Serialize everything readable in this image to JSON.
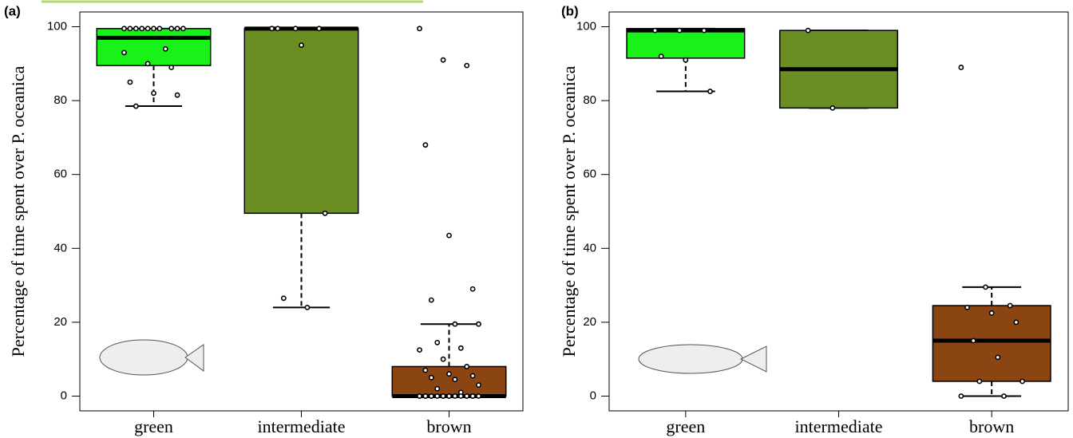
{
  "chart_data": [
    {
      "type": "boxplot",
      "panel_label": "(a)",
      "ylabel": "Percentage of time spent over P. oceanica",
      "categories": [
        "green",
        "intermediate",
        "brown"
      ],
      "colors": [
        "#19f219",
        "#6b8e23",
        "#8b4513"
      ],
      "ylim": [
        -4,
        104
      ],
      "yticks": [
        0,
        20,
        40,
        60,
        80,
        100
      ],
      "stats": [
        {
          "min": 78.5,
          "q1": 89.5,
          "median": 97,
          "q3": 99.5,
          "max": 99.5
        },
        {
          "min": 24,
          "q1": 49.5,
          "median": 99.5,
          "q3": 99.5,
          "max": 99.5
        },
        {
          "min": 0,
          "q1": 0,
          "median": 0,
          "q3": 8,
          "max": 19.5
        }
      ],
      "points": [
        [
          99.5,
          99.5,
          99.5,
          99.5,
          99.5,
          99.5,
          99.5,
          99.5,
          99.5,
          99.5,
          94,
          93,
          90,
          89,
          85,
          82,
          81.5,
          78.5
        ],
        [
          99.5,
          99.5,
          99.5,
          99.5,
          95,
          49.5,
          26.5,
          24
        ],
        [
          99.5,
          91,
          89.5,
          68,
          43.5,
          29,
          26,
          19.5,
          19.5,
          14.5,
          13,
          12.5,
          10,
          8,
          7,
          6,
          5.5,
          5,
          4.5,
          3,
          2,
          1,
          0,
          0,
          0,
          0,
          0,
          0,
          0,
          0,
          0,
          0,
          0,
          0,
          0,
          0,
          0,
          0,
          0,
          0
        ]
      ]
    },
    {
      "type": "boxplot",
      "panel_label": "(b)",
      "ylabel": "Percentage of time spent over P. oceanica",
      "categories": [
        "green",
        "intermediate",
        "brown"
      ],
      "colors": [
        "#19f219",
        "#6b8e23",
        "#8b4513"
      ],
      "ylim": [
        -4,
        104
      ],
      "yticks": [
        0,
        20,
        40,
        60,
        80,
        100
      ],
      "stats": [
        {
          "min": 82.5,
          "q1": 91.5,
          "median": 99,
          "q3": 99.5,
          "max": 99.5
        },
        {
          "min": 78,
          "q1": 78,
          "median": 88.5,
          "q3": 99,
          "max": 99
        },
        {
          "min": 0,
          "q1": 4,
          "median": 15,
          "q3": 24.5,
          "max": 29.5
        }
      ],
      "points": [
        [
          99,
          99,
          99,
          92,
          91,
          82.5
        ],
        [
          99,
          78
        ],
        [
          89,
          29.5,
          24.5,
          24,
          22.5,
          20,
          15,
          10.5,
          4,
          4,
          0,
          0
        ]
      ]
    }
  ]
}
